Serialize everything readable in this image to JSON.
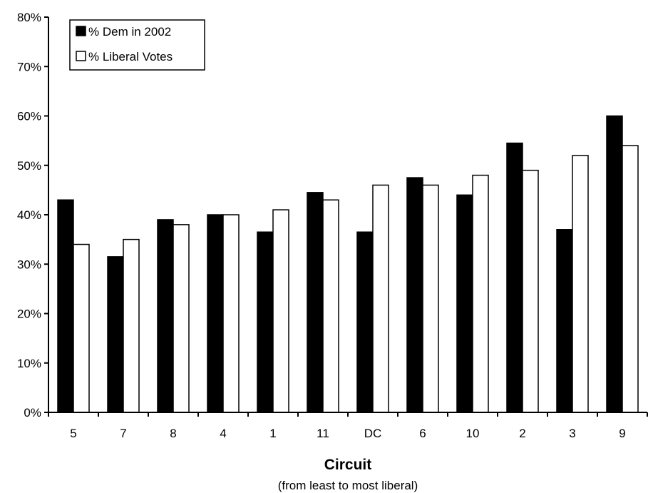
{
  "chart_data": {
    "type": "bar",
    "title": "",
    "xlabel": "Circuit",
    "xlabel_sub": "(from least to most liberal)",
    "ylabel": "",
    "ylim": [
      0,
      80
    ],
    "y_tick_step": 10,
    "y_tick_suffix": "%",
    "y_ticks": [
      "0%",
      "10%",
      "20%",
      "30%",
      "40%",
      "50%",
      "60%",
      "70%",
      "80%"
    ],
    "grid": false,
    "legend_position": "top-left",
    "categories": [
      "5",
      "7",
      "8",
      "4",
      "1",
      "11",
      "DC",
      "6",
      "10",
      "2",
      "3",
      "9"
    ],
    "series": [
      {
        "name": "% Dem in 2002",
        "fill": "#000000",
        "values": [
          43,
          31.5,
          39,
          40,
          36.5,
          44.5,
          36.5,
          47.5,
          44,
          54.5,
          37,
          60
        ]
      },
      {
        "name": "% Liberal Votes",
        "fill": "#ffffff",
        "values": [
          34,
          35,
          38,
          40,
          41,
          43,
          46,
          46,
          48,
          49,
          52,
          54
        ]
      }
    ]
  }
}
